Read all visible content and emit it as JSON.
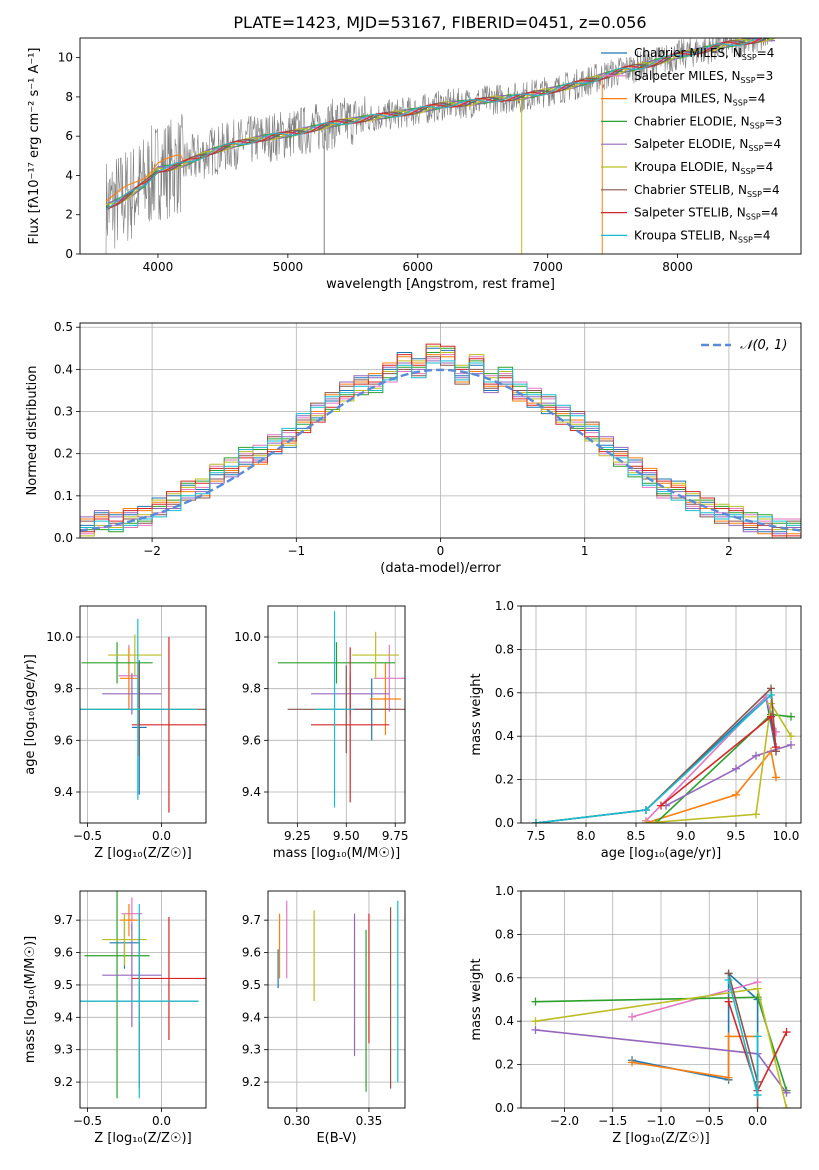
{
  "figure_title": "PLATE=1423, MJD=53167, FIBERID=0451, z=0.056",
  "series_colors": [
    "#1f77b4",
    "#e377c2",
    "#ff7f0e",
    "#2ca02c",
    "#9467bd",
    "#bcbd22",
    "#8c564b",
    "#d62728",
    "#17becf"
  ],
  "chart_data": [
    {
      "id": "spectrum",
      "type": "line",
      "xlabel": "wavelength [Angstrom, rest frame]",
      "ylabel": "Flux [fλ10⁻¹⁷ erg cm⁻² s⁻¹ A⁻¹]",
      "xlim": [
        3400,
        8950
      ],
      "ylim": [
        0,
        11
      ],
      "xticks": [
        4000,
        5000,
        6000,
        7000,
        8000
      ],
      "yticks": [
        0,
        2,
        4,
        6,
        8,
        10
      ],
      "grid": false,
      "legend_position": "upper-right",
      "data_color": "#808080",
      "data_x": [
        3600,
        3700,
        3800,
        3900,
        4000,
        4100,
        4200,
        4400,
        4600,
        4800,
        5000,
        5200,
        5400,
        5600,
        5800,
        6000,
        6200,
        6400,
        6600,
        6800,
        7000,
        7200,
        7400,
        7600,
        7800,
        8000,
        8200,
        8400,
        8600,
        8700
      ],
      "data_y": [
        2.4,
        2.7,
        3.1,
        3.6,
        4.3,
        4.4,
        4.6,
        5.2,
        5.6,
        5.9,
        6.1,
        6.4,
        6.7,
        6.9,
        7.1,
        7.3,
        7.6,
        7.7,
        7.9,
        8.0,
        8.3,
        8.6,
        9.0,
        9.4,
        9.7,
        10.1,
        10.4,
        10.7,
        10.9,
        11.0
      ],
      "legend": [
        {
          "imf": "Chabrier",
          "lib": "MILES",
          "n": "4"
        },
        {
          "imf": "Salpeter",
          "lib": "MILES",
          "n": "3"
        },
        {
          "imf": "Kroupa",
          "lib": "MILES",
          "n": "4"
        },
        {
          "imf": "Chabrier",
          "lib": "ELODIE",
          "n": "3"
        },
        {
          "imf": "Salpeter",
          "lib": "ELODIE",
          "n": "4"
        },
        {
          "imf": "Kroupa",
          "lib": "ELODIE",
          "n": "4"
        },
        {
          "imf": "Chabrier",
          "lib": "STELIB",
          "n": "4"
        },
        {
          "imf": "Salpeter",
          "lib": "STELIB",
          "n": "4"
        },
        {
          "imf": "Kroupa",
          "lib": "STELIB",
          "n": "4"
        }
      ]
    },
    {
      "id": "residuals",
      "type": "line",
      "xlabel": "(data-model)/error",
      "ylabel": "Normed distribution",
      "xlim": [
        -2.5,
        2.5
      ],
      "ylim": [
        0,
        0.51
      ],
      "xticks": [
        -2,
        -1,
        0,
        1,
        2
      ],
      "yticks": [
        0.0,
        0.1,
        0.2,
        0.3,
        0.4,
        0.5
      ],
      "grid": true,
      "legend_position": "upper-right",
      "gaussian_label": "𝒩(0, 1)",
      "gaussian_color": "#5b8bd6",
      "bins": [
        -2.5,
        -2.4,
        -2.3,
        -2.2,
        -2.1,
        -2.0,
        -1.9,
        -1.8,
        -1.7,
        -1.6,
        -1.5,
        -1.4,
        -1.3,
        -1.2,
        -1.1,
        -1.0,
        -0.9,
        -0.8,
        -0.7,
        -0.6,
        -0.5,
        -0.4,
        -0.3,
        -0.2,
        -0.1,
        0.0,
        0.1,
        0.2,
        0.3,
        0.4,
        0.5,
        0.6,
        0.7,
        0.8,
        0.9,
        1.0,
        1.1,
        1.2,
        1.3,
        1.4,
        1.5,
        1.6,
        1.7,
        1.8,
        1.9,
        2.0,
        2.1,
        2.2,
        2.3,
        2.4,
        2.5
      ],
      "hist_base": [
        0.03,
        0.04,
        0.04,
        0.045,
        0.055,
        0.07,
        0.09,
        0.11,
        0.12,
        0.15,
        0.17,
        0.19,
        0.2,
        0.22,
        0.24,
        0.27,
        0.3,
        0.32,
        0.35,
        0.36,
        0.37,
        0.39,
        0.42,
        0.4,
        0.44,
        0.43,
        0.39,
        0.41,
        0.37,
        0.38,
        0.35,
        0.33,
        0.32,
        0.29,
        0.28,
        0.25,
        0.22,
        0.19,
        0.17,
        0.14,
        0.12,
        0.11,
        0.09,
        0.07,
        0.06,
        0.05,
        0.04,
        0.03,
        0.025,
        0.02
      ]
    },
    {
      "id": "Z_age",
      "type": "scatter",
      "xlabel": "Z [log₁₀(Z/Z☉)]",
      "ylabel": "age  [log₁₀(age/yr)]",
      "xlim": [
        -0.55,
        0.3
      ],
      "ylim": [
        9.28,
        10.12
      ],
      "xticks": [
        -0.5,
        0.0
      ],
      "yticks": [
        9.4,
        9.6,
        9.8,
        10.0
      ],
      "grid": true,
      "points": [
        {
          "c": 0,
          "x": -0.15,
          "y": 9.65,
          "ex": 0.05,
          "ey": 0.26
        },
        {
          "c": 1,
          "x": -0.22,
          "y": 9.85,
          "ex": 0.07,
          "ey": 0.12
        },
        {
          "c": 2,
          "x": -0.22,
          "y": 9.84,
          "ex": 0.06,
          "ey": 0.12
        },
        {
          "c": 3,
          "x": -0.3,
          "y": 9.9,
          "ex": 0.24,
          "ey": 0.08
        },
        {
          "c": 4,
          "x": -0.2,
          "y": 9.78,
          "ex": 0.2,
          "ey": 0.08
        },
        {
          "c": 5,
          "x": -0.18,
          "y": 9.93,
          "ex": 0.18,
          "ey": 0.08
        },
        {
          "c": 6,
          "x": -0.15,
          "y": 9.72,
          "ex": 0.45,
          "ey": 0.18
        },
        {
          "c": 7,
          "x": 0.05,
          "y": 9.66,
          "ex": 0.25,
          "ey": 0.34
        },
        {
          "c": 8,
          "x": -0.16,
          "y": 9.72,
          "ex": 0.4,
          "ey": 0.35
        }
      ]
    },
    {
      "id": "mass_age",
      "type": "scatter",
      "xlabel": "mass [log₁₀(M/M☉)]",
      "ylabel": "",
      "xlim": [
        9.1,
        9.8
      ],
      "ylim": [
        9.28,
        10.12
      ],
      "xticks": [
        9.25,
        9.5,
        9.75
      ],
      "yticks": [
        9.4,
        9.6,
        9.8,
        10.0
      ],
      "grid": true,
      "points": [
        {
          "c": 0,
          "x": 9.63,
          "y": 9.72,
          "ex": 0.1,
          "ey": 0.12
        },
        {
          "c": 1,
          "x": 9.72,
          "y": 9.84,
          "ex": 0.08,
          "ey": 0.13
        },
        {
          "c": 2,
          "x": 9.7,
          "y": 9.76,
          "ex": 0.08,
          "ey": 0.14
        },
        {
          "c": 3,
          "x": 9.45,
          "y": 9.9,
          "ex": 0.3,
          "ey": 0.08
        },
        {
          "c": 4,
          "x": 9.52,
          "y": 9.78,
          "ex": 0.2,
          "ey": 0.08
        },
        {
          "c": 5,
          "x": 9.65,
          "y": 9.93,
          "ex": 0.12,
          "ey": 0.09
        },
        {
          "c": 6,
          "x": 9.5,
          "y": 9.72,
          "ex": 0.3,
          "ey": 0.17
        },
        {
          "c": 7,
          "x": 9.52,
          "y": 9.66,
          "ex": 0.2,
          "ey": 0.3
        },
        {
          "c": 8,
          "x": 9.44,
          "y": 9.72,
          "ex": 0.1,
          "ey": 0.38
        }
      ]
    },
    {
      "id": "age_weight",
      "type": "line",
      "xlabel": "age  [log₁₀(age/yr)]",
      "ylabel": "mass weight",
      "xlim": [
        7.35,
        10.15
      ],
      "ylim": [
        0,
        1.0
      ],
      "xticks": [
        7.5,
        8.0,
        8.5,
        9.0,
        9.5,
        10.0
      ],
      "yticks": [
        0.0,
        0.2,
        0.4,
        0.6,
        0.8,
        1.0
      ],
      "grid": true,
      "series": [
        {
          "c": 0,
          "x": [
            7.5,
            8.6,
            9.8,
            9.9
          ],
          "y": [
            0.0,
            0.06,
            0.58,
            0.33
          ]
        },
        {
          "c": 1,
          "x": [
            8.6,
            9.8,
            9.9
          ],
          "y": [
            0.01,
            0.58,
            0.42
          ]
        },
        {
          "c": 2,
          "x": [
            8.6,
            9.5,
            9.85,
            9.9
          ],
          "y": [
            0.0,
            0.13,
            0.33,
            0.21
          ]
        },
        {
          "c": 3,
          "x": [
            8.7,
            9.85,
            10.05
          ],
          "y": [
            0.0,
            0.5,
            0.49
          ]
        },
        {
          "c": 4,
          "x": [
            8.8,
            9.5,
            9.7,
            10.05
          ],
          "y": [
            0.08,
            0.25,
            0.31,
            0.36
          ]
        },
        {
          "c": 5,
          "x": [
            8.6,
            9.7,
            9.85,
            10.05
          ],
          "y": [
            0.0,
            0.04,
            0.55,
            0.4
          ]
        },
        {
          "c": 6,
          "x": [
            7.5,
            8.6,
            9.85,
            9.9
          ],
          "y": [
            0.0,
            0.06,
            0.62,
            0.33
          ]
        },
        {
          "c": 7,
          "x": [
            8.75,
            9.85,
            9.9
          ],
          "y": [
            0.08,
            0.49,
            0.35
          ]
        },
        {
          "c": 8,
          "x": [
            7.5,
            8.6,
            9.85
          ],
          "y": [
            0.0,
            0.06,
            0.59
          ]
        }
      ]
    },
    {
      "id": "Z_mass",
      "type": "scatter",
      "xlabel": "Z [log₁₀(Z/Z☉)]",
      "ylabel": "mass [log₁₀(M/M☉)]",
      "xlim": [
        -0.55,
        0.3
      ],
      "ylim": [
        9.12,
        9.79
      ],
      "xticks": [
        -0.5,
        0.0
      ],
      "yticks": [
        9.2,
        9.3,
        9.4,
        9.5,
        9.6,
        9.7
      ],
      "grid": true,
      "points": [
        {
          "c": 0,
          "x": -0.25,
          "y": 9.63,
          "ex": 0.1,
          "ey": 0.08
        },
        {
          "c": 1,
          "x": -0.2,
          "y": 9.72,
          "ex": 0.07,
          "ey": 0.05
        },
        {
          "c": 2,
          "x": -0.22,
          "y": 9.7,
          "ex": 0.06,
          "ey": 0.05
        },
        {
          "c": 3,
          "x": -0.3,
          "y": 9.59,
          "ex": 0.22,
          "ey": 0.44
        },
        {
          "c": 4,
          "x": -0.2,
          "y": 9.53,
          "ex": 0.2,
          "ey": 0.16
        },
        {
          "c": 5,
          "x": -0.25,
          "y": 9.64,
          "ex": 0.15,
          "ey": 0.08
        },
        {
          "c": 6,
          "x": -0.15,
          "y": 9.45,
          "ex": 0.4,
          "ey": 0.27
        },
        {
          "c": 7,
          "x": 0.05,
          "y": 9.52,
          "ex": 0.25,
          "ey": 0.19
        },
        {
          "c": 8,
          "x": -0.15,
          "y": 9.45,
          "ex": 0.4,
          "ey": 0.3
        }
      ]
    },
    {
      "id": "ebv_mass",
      "type": "scatter",
      "xlabel": "E(B-V)",
      "ylabel": "",
      "xlim": [
        0.28,
        0.375
      ],
      "ylim": [
        9.12,
        9.79
      ],
      "xticks": [
        0.3,
        0.35
      ],
      "yticks": [
        9.2,
        9.3,
        9.4,
        9.5,
        9.6,
        9.7
      ],
      "grid": true,
      "points": [
        {
          "c": 0,
          "x": 0.287,
          "y": 9.55,
          "ex": 0,
          "ey": 0.06
        },
        {
          "c": 2,
          "x": 0.288,
          "y": 9.62,
          "ex": 0,
          "ey": 0.1
        },
        {
          "c": 1,
          "x": 0.293,
          "y": 9.64,
          "ex": 0,
          "ey": 0.12
        },
        {
          "c": 5,
          "x": 0.312,
          "y": 9.59,
          "ex": 0,
          "ey": 0.14
        },
        {
          "c": 4,
          "x": 0.34,
          "y": 9.5,
          "ex": 0,
          "ey": 0.22
        },
        {
          "c": 3,
          "x": 0.348,
          "y": 9.42,
          "ex": 0,
          "ey": 0.25
        },
        {
          "c": 7,
          "x": 0.35,
          "y": 9.52,
          "ex": 0,
          "ey": 0.2
        },
        {
          "c": 6,
          "x": 0.365,
          "y": 9.46,
          "ex": 0,
          "ey": 0.28
        },
        {
          "c": 8,
          "x": 0.37,
          "y": 9.48,
          "ex": 0,
          "ey": 0.28
        }
      ]
    },
    {
      "id": "Zw_weight",
      "type": "line",
      "xlabel": "Z [log₁₀(Z/Z☉)]",
      "ylabel": "mass weight",
      "xlim": [
        -2.45,
        0.45
      ],
      "ylim": [
        0,
        1.0
      ],
      "xticks": [
        -2.0,
        -1.5,
        -1.0,
        -0.5,
        0.0
      ],
      "yticks": [
        0.0,
        0.2,
        0.4,
        0.6,
        0.8,
        1.0
      ],
      "grid": true,
      "series": [
        {
          "c": 0,
          "x": [
            -1.3,
            -0.3,
            -0.3,
            0.0,
            0.0
          ],
          "y": [
            0.22,
            0.13,
            0.62,
            0.5,
            0.06
          ]
        },
        {
          "c": 1,
          "x": [
            -1.3,
            0.0
          ],
          "y": [
            0.42,
            0.58
          ]
        },
        {
          "c": 2,
          "x": [
            -1.3,
            -0.3,
            -0.3,
            0.0
          ],
          "y": [
            0.21,
            0.14,
            0.33,
            0.33
          ]
        },
        {
          "c": 3,
          "x": [
            -2.3,
            0.0,
            0.3
          ],
          "y": [
            0.49,
            0.51,
            0.08
          ]
        },
        {
          "c": 4,
          "x": [
            -2.3,
            0.0,
            0.3
          ],
          "y": [
            0.36,
            0.25,
            0.07
          ]
        },
        {
          "c": 5,
          "x": [
            -2.3,
            0.0,
            0.3
          ],
          "y": [
            0.4,
            0.55,
            0.0
          ]
        },
        {
          "c": 6,
          "x": [
            -0.3,
            0.0,
            0.0
          ],
          "y": [
            0.62,
            0.12,
            0.0
          ]
        },
        {
          "c": 7,
          "x": [
            -0.3,
            0.0,
            0.3
          ],
          "y": [
            0.49,
            0.08,
            0.35
          ]
        },
        {
          "c": 8,
          "x": [
            -0.3,
            0.0,
            0.0
          ],
          "y": [
            0.59,
            0.06,
            0.33
          ]
        }
      ]
    }
  ]
}
